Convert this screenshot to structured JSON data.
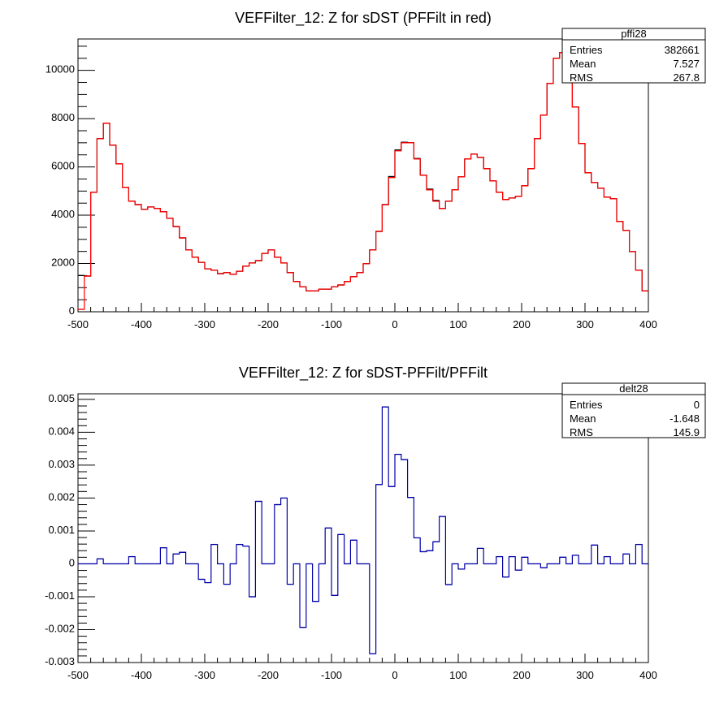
{
  "chart_data": [
    {
      "type": "histogram",
      "title": "VEFFilter_12: Z for sDST (PFFilt in red)",
      "xlabel": "",
      "ylabel": "",
      "xlim": [
        -500,
        400
      ],
      "ylim": [
        0,
        11300
      ],
      "bin_width": 10,
      "x_ticks": [
        -500,
        -400,
        -300,
        -200,
        -100,
        0,
        100,
        200,
        300,
        400
      ],
      "y_ticks": [
        0,
        2000,
        4000,
        6000,
        8000,
        10000
      ],
      "grid": false,
      "colors": {
        "sDST": "#000000",
        "PFFilt": "#ff0000"
      },
      "series": [
        {
          "name": "sDST",
          "values": [
            1500,
            1480,
            4950,
            7170,
            7810,
            6900,
            6130,
            5150,
            4580,
            4440,
            4240,
            4340,
            4280,
            4140,
            3870,
            3530,
            3060,
            2560,
            2260,
            2050,
            1780,
            1720,
            1580,
            1620,
            1550,
            1680,
            1890,
            2020,
            2120,
            2420,
            2560,
            2260,
            2020,
            1620,
            1250,
            1040,
            870,
            870,
            940,
            940,
            1040,
            1110,
            1250,
            1450,
            1620,
            1990,
            2560,
            3330,
            4440,
            5600,
            6700,
            7020,
            7000,
            6350,
            5660,
            5080,
            4610,
            4280,
            4580,
            5050,
            5590,
            6330,
            6530,
            6400,
            5930,
            5420,
            4950,
            4650,
            4710,
            4780,
            5220,
            5930,
            7170,
            8150,
            9460,
            10500,
            10740,
            9730,
            8480,
            6970,
            5760,
            5350,
            5120,
            4750,
            4680,
            3740,
            3370,
            2490,
            1720,
            870
          ]
        },
        {
          "name": "PFFilt",
          "values": [
            100,
            1480,
            4950,
            7170,
            7810,
            6900,
            6130,
            5150,
            4580,
            4440,
            4240,
            4340,
            4280,
            4140,
            3870,
            3530,
            3060,
            2560,
            2260,
            2050,
            1780,
            1720,
            1580,
            1620,
            1550,
            1680,
            1890,
            2020,
            2120,
            2420,
            2560,
            2260,
            2020,
            1620,
            1250,
            1040,
            870,
            870,
            940,
            940,
            1040,
            1110,
            1250,
            1450,
            1620,
            1990,
            2560,
            3330,
            4440,
            5560,
            6670,
            7000,
            7000,
            6330,
            5660,
            5050,
            4580,
            4280,
            4580,
            5050,
            5590,
            6330,
            6530,
            6400,
            5930,
            5420,
            4950,
            4650,
            4710,
            4780,
            5220,
            5930,
            7170,
            8150,
            9460,
            10500,
            10740,
            9730,
            8480,
            6970,
            5760,
            5350,
            5120,
            4750,
            4680,
            3740,
            3370,
            2490,
            1720,
            870
          ]
        }
      ],
      "stats": {
        "name": "pffi28",
        "rows": [
          {
            "label": "Entries",
            "value": "382661"
          },
          {
            "label": "Mean",
            "value": "7.527"
          },
          {
            "label": "RMS",
            "value": "267.8"
          }
        ]
      }
    },
    {
      "type": "histogram",
      "title": "VEFFilter_12: Z for sDST-PFFilt/PFFilt",
      "xlabel": "",
      "ylabel": "",
      "xlim": [
        -500,
        400
      ],
      "ylim": [
        -0.003,
        0.00517
      ],
      "bin_width": 10,
      "x_ticks": [
        -500,
        -400,
        -300,
        -200,
        -100,
        0,
        100,
        200,
        300,
        400
      ],
      "y_ticks": [
        -0.003,
        -0.002,
        -0.001,
        0,
        0.001,
        0.002,
        0.003,
        0.004,
        0.005
      ],
      "y_tick_labels": [
        "-0.003",
        "-0.002",
        "-0.001",
        "0",
        "0.001",
        "0.002",
        "0.003",
        "0.004",
        "0.005"
      ],
      "grid": false,
      "colors": {
        "delta": "#0000a8"
      },
      "series": [
        {
          "name": "delta",
          "values": [
            0,
            0,
            0,
            0.00015,
            0,
            0,
            0,
            0,
            0.00022,
            0,
            0,
            0,
            0,
            0.00049,
            0,
            0.0003,
            0.00035,
            0,
            0,
            -0.00047,
            -0.00057,
            0.00059,
            0,
            -0.00062,
            0,
            0.00059,
            0.00054,
            -0.001,
            0.0019,
            0,
            0,
            0.0018,
            0.002,
            -0.00062,
            0,
            -0.00193,
            0,
            -0.00114,
            0,
            0.00109,
            -0.00096,
            0.00089,
            0,
            0.00072,
            0,
            0,
            -0.00273,
            0.00241,
            0.00477,
            0.00235,
            0.00333,
            0.00317,
            0.00202,
            0.00079,
            0.00037,
            0.0004,
            0.00067,
            0.00144,
            -0.00063,
            0,
            -0.00016,
            0,
            0,
            0.00047,
            0,
            0,
            0.00022,
            -0.0004,
            0.00022,
            -0.00019,
            0.0002,
            0,
            0,
            -0.00012,
            0,
            0,
            0.0002,
            0,
            0.00026,
            0,
            0,
            0.00057,
            0,
            0.00022,
            0,
            0,
            0.0003,
            0,
            0.00059,
            0
          ]
        }
      ],
      "stats": {
        "name": "delt28",
        "rows": [
          {
            "label": "Entries",
            "value": "0"
          },
          {
            "label": "Mean",
            "value": "-1.648"
          },
          {
            "label": "RMS",
            "value": "145.9"
          }
        ]
      }
    }
  ]
}
